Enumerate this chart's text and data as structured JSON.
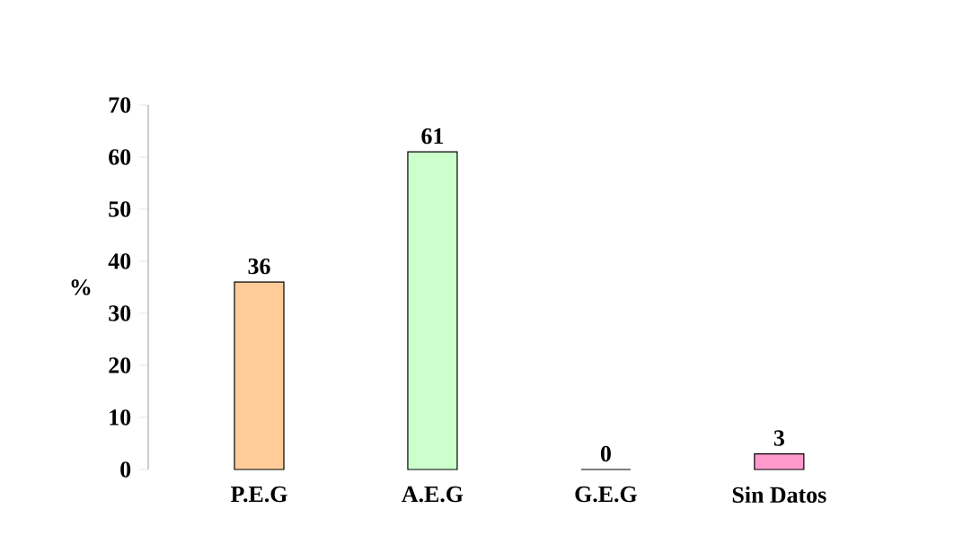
{
  "chart_data": {
    "type": "bar",
    "ylabel": "%",
    "categories": [
      "P.E.G",
      "A.E.G",
      "G.E.G",
      "Sin Datos"
    ],
    "values": [
      36,
      61,
      0,
      3
    ],
    "colors": [
      "#ffcc99",
      "#ccffcc",
      "#0099bb",
      "#ff99cc"
    ],
    "ylim": [
      0,
      70
    ],
    "yticks": [
      0,
      10,
      20,
      30,
      40,
      50,
      60,
      70
    ],
    "data_labels": true,
    "grid": false
  }
}
